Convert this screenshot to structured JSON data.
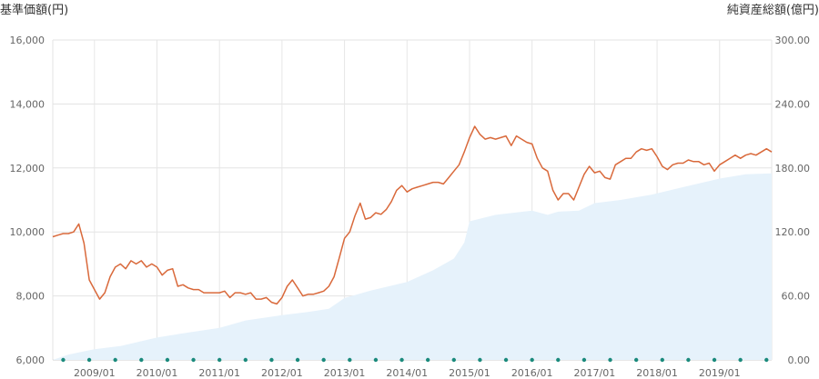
{
  "chart_data": {
    "type": "line",
    "left_axis_title": "基準価額(円)",
    "right_axis_title": "純資産総額(億円)",
    "y_left": {
      "ticks": [
        "6,000",
        "8,000",
        "10,000",
        "12,000",
        "14,000",
        "16,000"
      ],
      "range": [
        6000,
        16000
      ]
    },
    "y_right": {
      "ticks": [
        "0.00",
        "60.00",
        "120.00",
        "180.00",
        "240.00",
        "300.00"
      ],
      "range": [
        0,
        300
      ]
    },
    "x": {
      "range": [
        "2008-05",
        "2019-11"
      ],
      "ticks": [
        "2009/01",
        "2010/01",
        "2011/01",
        "2012/01",
        "2013/01",
        "2014/01",
        "2015/01",
        "2016/01",
        "2017/01",
        "2018/01",
        "2019/01"
      ]
    },
    "grid": true,
    "series": [
      {
        "type": "line",
        "color": "#d9693b",
        "axis": "left",
        "points": [
          [
            "2008-05",
            9850
          ],
          [
            "2008-06",
            9900
          ],
          [
            "2008-07",
            9950
          ],
          [
            "2008-08",
            9950
          ],
          [
            "2008-09",
            10000
          ],
          [
            "2008-10",
            10250
          ],
          [
            "2008-11",
            9650
          ],
          [
            "2008-12",
            8500
          ],
          [
            "2009-01",
            8200
          ],
          [
            "2009-02",
            7900
          ],
          [
            "2009-03",
            8100
          ],
          [
            "2009-04",
            8600
          ],
          [
            "2009-05",
            8900
          ],
          [
            "2009-06",
            9000
          ],
          [
            "2009-07",
            8850
          ],
          [
            "2009-08",
            9100
          ],
          [
            "2009-09",
            9000
          ],
          [
            "2009-10",
            9100
          ],
          [
            "2009-11",
            8900
          ],
          [
            "2009-12",
            9000
          ],
          [
            "2010-01",
            8900
          ],
          [
            "2010-02",
            8650
          ],
          [
            "2010-03",
            8800
          ],
          [
            "2010-04",
            8850
          ],
          [
            "2010-05",
            8300
          ],
          [
            "2010-06",
            8350
          ],
          [
            "2010-07",
            8250
          ],
          [
            "2010-08",
            8200
          ],
          [
            "2010-09",
            8200
          ],
          [
            "2010-10",
            8100
          ],
          [
            "2010-11",
            8100
          ],
          [
            "2010-12",
            8100
          ],
          [
            "2011-01",
            8100
          ],
          [
            "2011-02",
            8150
          ],
          [
            "2011-03",
            7950
          ],
          [
            "2011-04",
            8100
          ],
          [
            "2011-05",
            8100
          ],
          [
            "2011-06",
            8050
          ],
          [
            "2011-07",
            8100
          ],
          [
            "2011-08",
            7900
          ],
          [
            "2011-09",
            7900
          ],
          [
            "2011-10",
            7950
          ],
          [
            "2011-11",
            7800
          ],
          [
            "2011-12",
            7750
          ],
          [
            "2012-01",
            7950
          ],
          [
            "2012-02",
            8300
          ],
          [
            "2012-03",
            8500
          ],
          [
            "2012-04",
            8250
          ],
          [
            "2012-05",
            8000
          ],
          [
            "2012-06",
            8050
          ],
          [
            "2012-07",
            8050
          ],
          [
            "2012-08",
            8100
          ],
          [
            "2012-09",
            8150
          ],
          [
            "2012-10",
            8300
          ],
          [
            "2012-11",
            8600
          ],
          [
            "2012-12",
            9200
          ],
          [
            "2013-01",
            9800
          ],
          [
            "2013-02",
            10000
          ],
          [
            "2013-03",
            10500
          ],
          [
            "2013-04",
            10900
          ],
          [
            "2013-05",
            10400
          ],
          [
            "2013-06",
            10450
          ],
          [
            "2013-07",
            10600
          ],
          [
            "2013-08",
            10550
          ],
          [
            "2013-09",
            10700
          ],
          [
            "2013-10",
            10950
          ],
          [
            "2013-11",
            11300
          ],
          [
            "2013-12",
            11450
          ],
          [
            "2014-01",
            11250
          ],
          [
            "2014-02",
            11350
          ],
          [
            "2014-03",
            11400
          ],
          [
            "2014-04",
            11450
          ],
          [
            "2014-05",
            11500
          ],
          [
            "2014-06",
            11550
          ],
          [
            "2014-07",
            11550
          ],
          [
            "2014-08",
            11500
          ],
          [
            "2014-09",
            11700
          ],
          [
            "2014-10",
            11900
          ],
          [
            "2014-11",
            12100
          ],
          [
            "2014-12",
            12500
          ],
          [
            "2015-01",
            12950
          ],
          [
            "2015-02",
            13300
          ],
          [
            "2015-03",
            13050
          ],
          [
            "2015-04",
            12900
          ],
          [
            "2015-05",
            12950
          ],
          [
            "2015-06",
            12900
          ],
          [
            "2015-07",
            12950
          ],
          [
            "2015-08",
            13000
          ],
          [
            "2015-09",
            12700
          ],
          [
            "2015-10",
            13000
          ],
          [
            "2015-11",
            12900
          ],
          [
            "2015-12",
            12800
          ],
          [
            "2016-01",
            12750
          ],
          [
            "2016-02",
            12300
          ],
          [
            "2016-03",
            12000
          ],
          [
            "2016-04",
            11900
          ],
          [
            "2016-05",
            11300
          ],
          [
            "2016-06",
            11000
          ],
          [
            "2016-07",
            11200
          ],
          [
            "2016-08",
            11200
          ],
          [
            "2016-09",
            11000
          ],
          [
            "2016-10",
            11400
          ],
          [
            "2016-11",
            11800
          ],
          [
            "2016-12",
            12050
          ],
          [
            "2017-01",
            11850
          ],
          [
            "2017-02",
            11900
          ],
          [
            "2017-03",
            11700
          ],
          [
            "2017-04",
            11650
          ],
          [
            "2017-05",
            12100
          ],
          [
            "2017-06",
            12200
          ],
          [
            "2017-07",
            12300
          ],
          [
            "2017-08",
            12300
          ],
          [
            "2017-09",
            12500
          ],
          [
            "2017-10",
            12600
          ],
          [
            "2017-11",
            12550
          ],
          [
            "2017-12",
            12600
          ],
          [
            "2018-01",
            12350
          ],
          [
            "2018-02",
            12050
          ],
          [
            "2018-03",
            11950
          ],
          [
            "2018-04",
            12100
          ],
          [
            "2018-05",
            12150
          ],
          [
            "2018-06",
            12150
          ],
          [
            "2018-07",
            12250
          ],
          [
            "2018-08",
            12200
          ],
          [
            "2018-09",
            12200
          ],
          [
            "2018-10",
            12100
          ],
          [
            "2018-11",
            12150
          ],
          [
            "2018-12",
            11900
          ],
          [
            "2019-01",
            12100
          ],
          [
            "2019-02",
            12200
          ],
          [
            "2019-03",
            12300
          ],
          [
            "2019-04",
            12400
          ],
          [
            "2019-05",
            12300
          ],
          [
            "2019-06",
            12400
          ],
          [
            "2019-07",
            12450
          ],
          [
            "2019-08",
            12400
          ],
          [
            "2019-09",
            12500
          ],
          [
            "2019-10",
            12600
          ],
          [
            "2019-11",
            12500
          ]
        ]
      },
      {
        "type": "area",
        "color": "#e6f2fb",
        "axis": "right",
        "points": [
          [
            "2008-05",
            0
          ],
          [
            "2008-08",
            5
          ],
          [
            "2008-12",
            9
          ],
          [
            "2009-01",
            10
          ],
          [
            "2009-06",
            13
          ],
          [
            "2010-01",
            21
          ],
          [
            "2010-06",
            25
          ],
          [
            "2011-01",
            30
          ],
          [
            "2011-06",
            37
          ],
          [
            "2012-01",
            42
          ],
          [
            "2012-06",
            45
          ],
          [
            "2012-10",
            48
          ],
          [
            "2013-01",
            58
          ],
          [
            "2013-06",
            65
          ],
          [
            "2014-01",
            73
          ],
          [
            "2014-06",
            84
          ],
          [
            "2014-10",
            95
          ],
          [
            "2014-12",
            110
          ],
          [
            "2015-01",
            130
          ],
          [
            "2015-06",
            136
          ],
          [
            "2016-01",
            140
          ],
          [
            "2016-04",
            136
          ],
          [
            "2016-06",
            139
          ],
          [
            "2016-10",
            140
          ],
          [
            "2017-01",
            147
          ],
          [
            "2017-06",
            150
          ],
          [
            "2017-12",
            155
          ],
          [
            "2018-06",
            162
          ],
          [
            "2019-01",
            170
          ],
          [
            "2019-06",
            174
          ],
          [
            "2019-11",
            175
          ]
        ]
      }
    ],
    "x_markers": [
      "2008-07",
      "2008-12",
      "2009-05",
      "2009-10",
      "2010-03",
      "2010-08",
      "2011-01",
      "2011-06",
      "2011-11",
      "2012-04",
      "2012-09",
      "2013-02",
      "2013-07",
      "2013-12",
      "2014-05",
      "2014-10",
      "2015-03",
      "2015-08",
      "2016-01",
      "2016-06",
      "2016-11",
      "2017-04",
      "2017-09",
      "2018-02",
      "2018-07",
      "2018-12",
      "2019-05",
      "2019-10"
    ],
    "marker_color": "#1a8a7c"
  }
}
